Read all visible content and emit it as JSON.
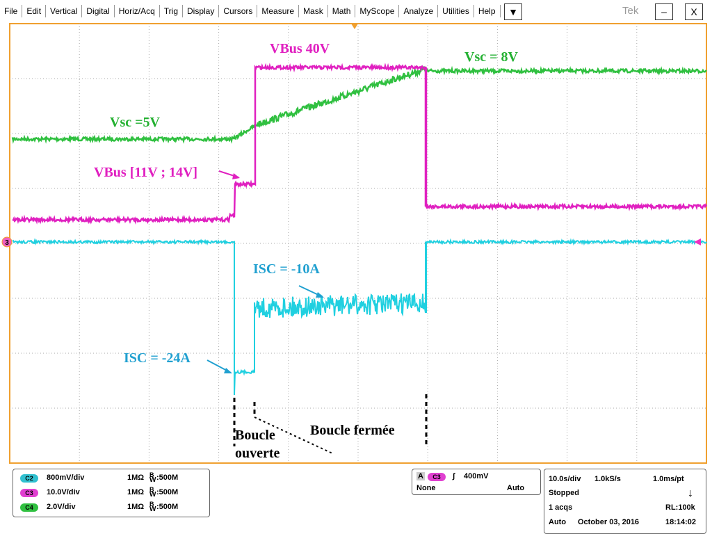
{
  "menu": [
    "File",
    "Edit",
    "Vertical",
    "Digital",
    "Horiz/Acq",
    "Trig",
    "Display",
    "Cursors",
    "Measure",
    "Mask",
    "Math",
    "MyScope",
    "Analyze",
    "Utilities",
    "Help"
  ],
  "window": {
    "dropdown": "▼",
    "logo": "Tek",
    "minimize": "–",
    "close": "X"
  },
  "marker": "3",
  "annotations": {
    "vbus_high": "VBus 40V",
    "vsc_high": "Vsc = 8V",
    "vsc_low": "Vsc =5V",
    "vbus_mid": "VBus [11V ; 14V]",
    "isc_mid": "ISC = -10A",
    "isc_peak": "ISC = -24A",
    "open_loop_1": "Boucle",
    "open_loop_2": "ouverte",
    "closed_loop": "Boucle fermée"
  },
  "channels": [
    {
      "badge": "C2",
      "scale": "800mV/div",
      "impedance": "1MΩ",
      "bw": "B",
      "bw_sub": "W",
      "bandwidth": ":500M"
    },
    {
      "badge": "C3",
      "scale": "10.0V/div",
      "impedance": "1MΩ",
      "bw": "B",
      "bw_sub": "W",
      "bandwidth": ":500M"
    },
    {
      "badge": "C4",
      "scale": "2.0V/div",
      "impedance": "1MΩ",
      "bw": "B",
      "bw_sub": "W",
      "bandwidth": ":500M"
    }
  ],
  "trigger": {
    "label": "A",
    "channel": "C3",
    "level": "400mV",
    "coupling": "None",
    "mode": "Auto"
  },
  "acquisition": {
    "timebase": "10.0s/div",
    "sample_rate": "1.0kS/s",
    "resolution": "1.0ms/pt",
    "state": "Stopped",
    "acqs": "1 acqs",
    "record": "RL:100k",
    "mode": "Auto",
    "date": "October 03, 2016",
    "time": "18:14:02"
  }
}
